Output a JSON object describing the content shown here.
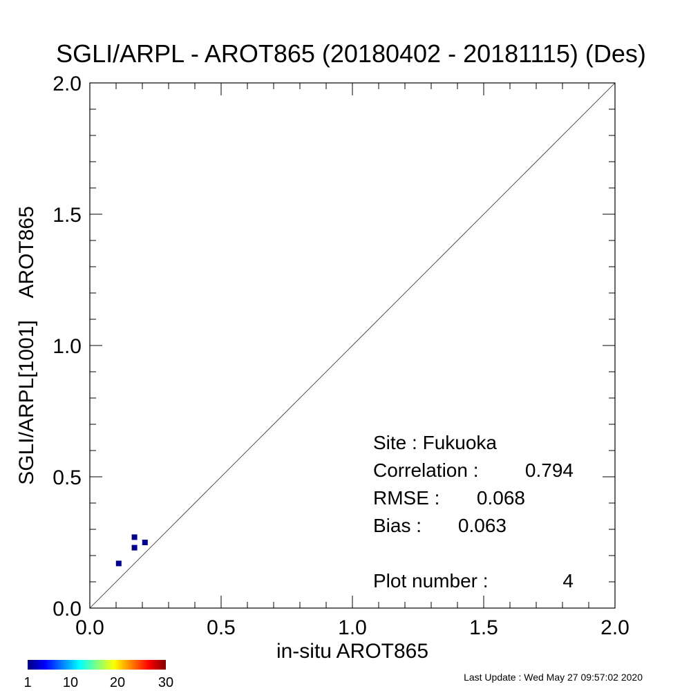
{
  "chart_data": {
    "type": "scatter",
    "title": "SGLI/ARPL - AROT865 (20180402 - 20181115) (Des)",
    "xlabel": "in-situ AROT865",
    "ylabel": "SGLI/ARPL[1001]    AROT865",
    "xlim": [
      0.0,
      2.0
    ],
    "ylim": [
      0.0,
      2.0
    ],
    "xticks": [
      "0.0",
      "0.5",
      "1.0",
      "1.5",
      "2.0"
    ],
    "yticks": [
      "0.0",
      "0.5",
      "1.0",
      "1.5",
      "2.0"
    ],
    "reference_line": "1:1",
    "point_color": "#00008b",
    "points": [
      {
        "x": 0.11,
        "y": 0.17
      },
      {
        "x": 0.17,
        "y": 0.23
      },
      {
        "x": 0.17,
        "y": 0.27
      },
      {
        "x": 0.21,
        "y": 0.25
      }
    ],
    "stats": [
      {
        "label": "Site : Fukuoka",
        "value": ""
      },
      {
        "label": "Correlation :",
        "value": "0.794"
      },
      {
        "label": "RMSE :",
        "value": "0.068"
      },
      {
        "label": "Bias :",
        "value": "0.063"
      },
      {
        "label": "Plot number :",
        "value": "4"
      }
    ],
    "colorbar": {
      "ticks": [
        "1",
        "10",
        "20",
        "30"
      ],
      "colors": [
        "#00007f",
        "#0000ff",
        "#007fff",
        "#00ffff",
        "#7fff7f",
        "#ffff00",
        "#ff7f00",
        "#ff0000",
        "#7f0000"
      ]
    }
  },
  "footer": {
    "last_update": "Last Update : Wed May 27 09:57:02 2020"
  }
}
